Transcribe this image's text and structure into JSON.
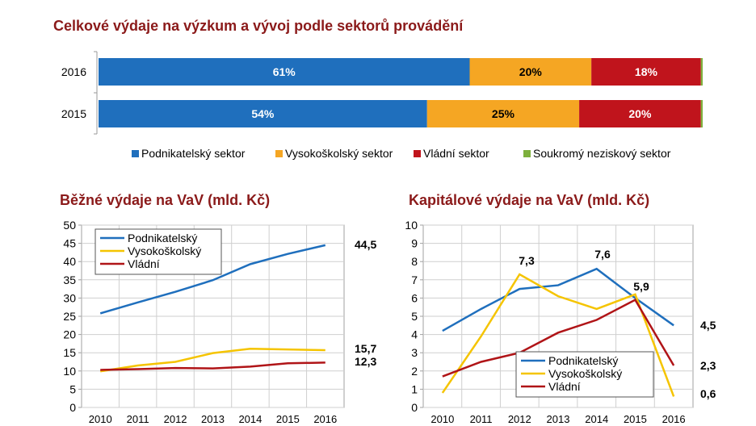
{
  "chart_data": [
    {
      "type": "bar",
      "orientation": "horizontal",
      "stacked": true,
      "title": "Celkové výdaje na výzkum a vývoj podle sektorů provádění",
      "categories": [
        "2016",
        "2015"
      ],
      "series": [
        {
          "name": "Podnikatelský sektor",
          "color": "#1f6fbd",
          "values": [
            61,
            54
          ],
          "labels": [
            "61%",
            "54%"
          ]
        },
        {
          "name": "Vysokoškolský sektor",
          "color": "#f5a623",
          "values": [
            20,
            25
          ],
          "labels": [
            "20%",
            "25%"
          ]
        },
        {
          "name": "Vládní sektor",
          "color": "#c0141c",
          "values": [
            18,
            20
          ],
          "labels": [
            "18%",
            "20%"
          ]
        },
        {
          "name": "Soukromý neziskový sektor",
          "color": "#7db03d",
          "values": [
            0.3,
            0.3
          ],
          "labels": [
            "",
            ""
          ]
        }
      ],
      "legend_position": "bottom"
    },
    {
      "type": "line",
      "title": "Běžné výdaje na VaV (mld. Kč)",
      "x": [
        "2010",
        "2011",
        "2012",
        "2013",
        "2014",
        "2015",
        "2016"
      ],
      "ylim": [
        0,
        50
      ],
      "yticks": [
        0,
        5,
        10,
        15,
        20,
        25,
        30,
        35,
        40,
        45,
        50
      ],
      "grid": true,
      "legend_position": "top-left",
      "series": [
        {
          "name": "Podnikatelský",
          "color": "#1f6fbd",
          "values": [
            25.8,
            28.8,
            31.7,
            34.9,
            39.3,
            42.1,
            44.5
          ]
        },
        {
          "name": "Vysokoškolský",
          "color": "#f5c400",
          "values": [
            9.9,
            11.5,
            12.5,
            14.9,
            16.1,
            15.9,
            15.7
          ]
        },
        {
          "name": "Vládní",
          "color": "#b01417",
          "values": [
            10.3,
            10.5,
            10.8,
            10.7,
            11.2,
            12.1,
            12.3
          ]
        }
      ],
      "end_labels": [
        "44,5",
        "15,7",
        "12,3"
      ]
    },
    {
      "type": "line",
      "title": "Kapitálové výdaje na VaV (mld. Kč)",
      "x": [
        "2010",
        "2011",
        "2012",
        "2013",
        "2014",
        "2015",
        "2016"
      ],
      "ylim": [
        0,
        10
      ],
      "yticks": [
        0,
        1,
        2,
        3,
        4,
        5,
        6,
        7,
        8,
        9,
        10
      ],
      "grid": true,
      "legend_position": "bottom-left",
      "series": [
        {
          "name": "Podnikatelský",
          "color": "#1f6fbd",
          "values": [
            4.2,
            5.4,
            6.5,
            6.7,
            7.6,
            6.0,
            4.5
          ]
        },
        {
          "name": "Vysokoškolský",
          "color": "#f5c400",
          "values": [
            0.8,
            3.9,
            7.3,
            6.1,
            5.4,
            6.2,
            0.6
          ]
        },
        {
          "name": "Vládní",
          "color": "#b01417",
          "values": [
            1.7,
            2.5,
            3.0,
            4.1,
            4.8,
            5.9,
            2.3
          ]
        }
      ],
      "annotations": [
        "7,3",
        "7,6",
        "5,9"
      ],
      "end_labels": [
        "4,5",
        "2,3",
        "0,6"
      ]
    }
  ]
}
